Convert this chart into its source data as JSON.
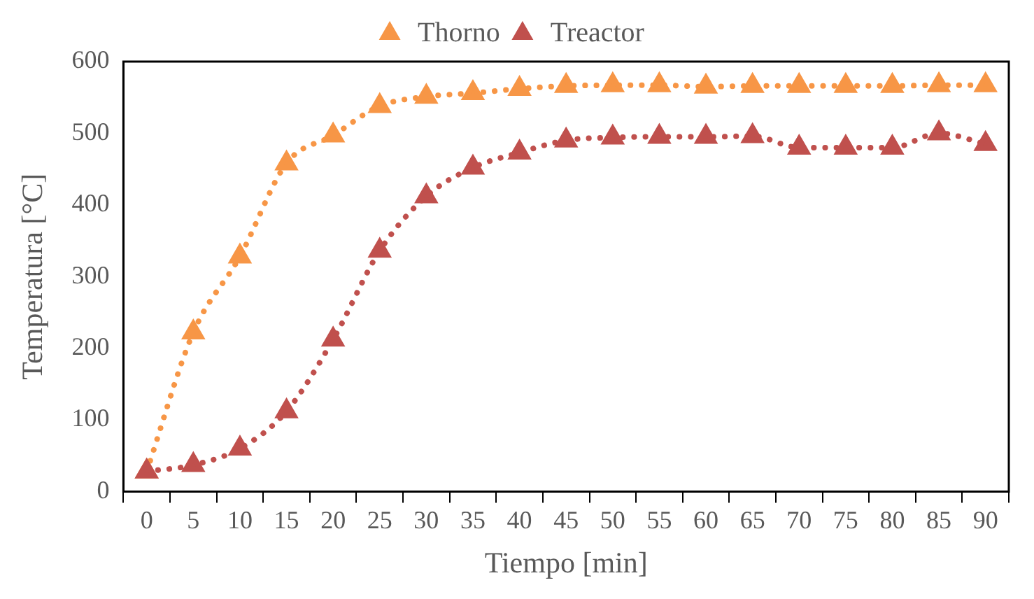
{
  "chart_data": {
    "type": "line",
    "xlabel": "Tiempo [min]",
    "ylabel": "Temperatura [°C]",
    "categories": [
      "0",
      "5",
      "10",
      "15",
      "20",
      "25",
      "30",
      "35",
      "40",
      "45",
      "50",
      "55",
      "60",
      "65",
      "70",
      "75",
      "80",
      "85",
      "90"
    ],
    "series": [
      {
        "name": "Thorno",
        "color": "#f79646",
        "values": [
          28,
          222,
          328,
          458,
          497,
          538,
          551,
          556,
          562,
          566,
          567,
          567,
          565,
          566,
          566,
          566,
          566,
          567,
          567
        ]
      },
      {
        "name": "Treactor",
        "color": "#c0504d",
        "values": [
          28,
          37,
          60,
          112,
          212,
          336,
          412,
          452,
          473,
          490,
          494,
          495,
          495,
          496,
          480,
          480,
          480,
          500,
          485
        ]
      }
    ],
    "ylim": [
      0,
      600
    ],
    "yticks": [
      0,
      100,
      200,
      300,
      400,
      500,
      600
    ],
    "grid": false,
    "legend": "top",
    "marker": "triangle",
    "line_style": "dotted"
  }
}
